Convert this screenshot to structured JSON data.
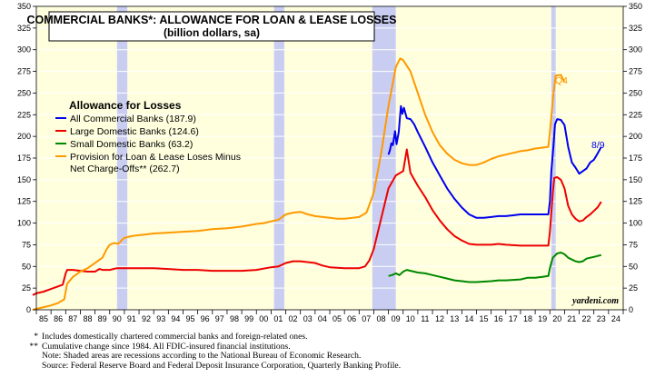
{
  "chart_data": {
    "type": "line",
    "title": "COMMERCIAL BANKS*: ALLOWANCE FOR LOAN & LEASE LOSSES",
    "subtitle": "(billion dollars, sa)",
    "ylim": [
      0,
      350
    ],
    "y_ticks": [
      "0",
      "25",
      "50",
      "75",
      "100",
      "125",
      "150",
      "175",
      "200",
      "225",
      "250",
      "275",
      "300",
      "325",
      "350"
    ],
    "xlim": [
      1985,
      2025
    ],
    "x_ticks": [
      "85",
      "86",
      "87",
      "88",
      "89",
      "90",
      "91",
      "92",
      "93",
      "94",
      "95",
      "96",
      "97",
      "98",
      "99",
      "00",
      "01",
      "02",
      "03",
      "04",
      "05",
      "06",
      "07",
      "08",
      "09",
      "10",
      "11",
      "12",
      "13",
      "14",
      "15",
      "16",
      "17",
      "18",
      "19",
      "20",
      "21",
      "22",
      "23",
      "24",
      "25"
    ],
    "recessions": [
      [
        1990.5,
        1991.2
      ],
      [
        2001.2,
        2001.9
      ],
      [
        2007.9,
        2009.5
      ],
      [
        2020.1,
        2020.4
      ]
    ],
    "legend_title": "Allowance for Losses",
    "series": [
      {
        "name": "All Commercial Banks (187.9)",
        "color": "#0000ee",
        "points": [
          [
            2009.0,
            179
          ],
          [
            2009.1,
            184
          ],
          [
            2009.2,
            192
          ],
          [
            2009.3,
            190
          ],
          [
            2009.45,
            206
          ],
          [
            2009.55,
            191
          ],
          [
            2009.7,
            205
          ],
          [
            2009.85,
            235
          ],
          [
            2009.95,
            226
          ],
          [
            2010.05,
            233
          ],
          [
            2010.25,
            221
          ],
          [
            2010.5,
            220
          ],
          [
            2010.75,
            214
          ],
          [
            2011,
            205
          ],
          [
            2011.5,
            188
          ],
          [
            2012,
            170
          ],
          [
            2012.5,
            155
          ],
          [
            2013,
            140
          ],
          [
            2013.5,
            128
          ],
          [
            2014,
            118
          ],
          [
            2014.5,
            110
          ],
          [
            2015,
            106
          ],
          [
            2015.5,
            106
          ],
          [
            2016,
            107
          ],
          [
            2016.5,
            108
          ],
          [
            2017,
            108
          ],
          [
            2017.5,
            109
          ],
          [
            2018,
            110
          ],
          [
            2018.5,
            110
          ],
          [
            2019,
            110
          ],
          [
            2019.5,
            110
          ],
          [
            2019.9,
            110
          ],
          [
            2020.0,
            125
          ],
          [
            2020.1,
            160
          ],
          [
            2020.25,
            190
          ],
          [
            2020.35,
            214
          ],
          [
            2020.5,
            220
          ],
          [
            2020.75,
            219
          ],
          [
            2021,
            213
          ],
          [
            2021.25,
            188
          ],
          [
            2021.5,
            170
          ],
          [
            2021.75,
            164
          ],
          [
            2022,
            157
          ],
          [
            2022.25,
            160
          ],
          [
            2022.5,
            163
          ],
          [
            2022.75,
            170
          ],
          [
            2023.0,
            173
          ],
          [
            2023.25,
            180
          ],
          [
            2023.5,
            187.9
          ]
        ],
        "end_label": "8/9"
      },
      {
        "name": "Large Domestic Banks (124.6)",
        "color": "#ee0000",
        "points": [
          [
            1984.75,
            17
          ],
          [
            1985,
            19
          ],
          [
            1985.5,
            21
          ],
          [
            1986,
            24
          ],
          [
            1986.5,
            27
          ],
          [
            1986.8,
            29
          ],
          [
            1987.0,
            42
          ],
          [
            1987.1,
            46
          ],
          [
            1987.5,
            46
          ],
          [
            1988,
            45
          ],
          [
            1988.5,
            44
          ],
          [
            1989,
            44
          ],
          [
            1989.3,
            47
          ],
          [
            1989.5,
            46
          ],
          [
            1990,
            46
          ],
          [
            1990.5,
            48
          ],
          [
            1991,
            48
          ],
          [
            1992,
            48
          ],
          [
            1993,
            48
          ],
          [
            1994,
            47
          ],
          [
            1995,
            46
          ],
          [
            1996,
            46
          ],
          [
            1997,
            45
          ],
          [
            1998,
            45
          ],
          [
            1999,
            45
          ],
          [
            2000,
            46
          ],
          [
            2001,
            49
          ],
          [
            2001.5,
            50
          ],
          [
            2002,
            54
          ],
          [
            2002.5,
            56
          ],
          [
            2003,
            56
          ],
          [
            2004,
            54
          ],
          [
            2004.5,
            51
          ],
          [
            2005,
            49
          ],
          [
            2006,
            48
          ],
          [
            2007,
            48
          ],
          [
            2007.4,
            50
          ],
          [
            2007.7,
            57
          ],
          [
            2008,
            70
          ],
          [
            2008.5,
            105
          ],
          [
            2009,
            140
          ],
          [
            2009.5,
            155
          ],
          [
            2010,
            160
          ],
          [
            2010.25,
            185
          ],
          [
            2010.5,
            158
          ],
          [
            2011,
            143
          ],
          [
            2011.5,
            130
          ],
          [
            2012,
            115
          ],
          [
            2012.5,
            103
          ],
          [
            2013,
            93
          ],
          [
            2013.5,
            85
          ],
          [
            2014,
            80
          ],
          [
            2014.5,
            76
          ],
          [
            2015,
            75
          ],
          [
            2016,
            75
          ],
          [
            2016.5,
            76
          ],
          [
            2017,
            75
          ],
          [
            2018,
            74
          ],
          [
            2019,
            74
          ],
          [
            2019.9,
            74
          ],
          [
            2020.0,
            90
          ],
          [
            2020.2,
            135
          ],
          [
            2020.3,
            152
          ],
          [
            2020.5,
            153
          ],
          [
            2020.75,
            150
          ],
          [
            2021,
            140
          ],
          [
            2021.25,
            120
          ],
          [
            2021.5,
            110
          ],
          [
            2021.75,
            105
          ],
          [
            2022,
            102
          ],
          [
            2022.25,
            103
          ],
          [
            2022.5,
            107
          ],
          [
            2022.75,
            110
          ],
          [
            2023,
            114
          ],
          [
            2023.25,
            118
          ],
          [
            2023.5,
            124.6
          ]
        ]
      },
      {
        "name": "Small Domestic Banks (63.2)",
        "color": "#008800",
        "points": [
          [
            2009.0,
            39
          ],
          [
            2009.25,
            40
          ],
          [
            2009.5,
            42
          ],
          [
            2009.75,
            40
          ],
          [
            2010,
            44
          ],
          [
            2010.25,
            46
          ],
          [
            2010.5,
            45
          ],
          [
            2011,
            43
          ],
          [
            2011.5,
            42
          ],
          [
            2012,
            40
          ],
          [
            2012.5,
            38
          ],
          [
            2013,
            36
          ],
          [
            2013.5,
            34
          ],
          [
            2014,
            33
          ],
          [
            2014.5,
            32
          ],
          [
            2015,
            32
          ],
          [
            2016,
            33
          ],
          [
            2016.5,
            34
          ],
          [
            2017,
            34
          ],
          [
            2018,
            35
          ],
          [
            2018.5,
            37
          ],
          [
            2019,
            37
          ],
          [
            2019.5,
            38
          ],
          [
            2019.9,
            39
          ],
          [
            2020.0,
            48
          ],
          [
            2020.2,
            60
          ],
          [
            2020.5,
            65
          ],
          [
            2020.75,
            66
          ],
          [
            2021,
            64
          ],
          [
            2021.25,
            60
          ],
          [
            2021.5,
            58
          ],
          [
            2021.75,
            56
          ],
          [
            2022,
            55
          ],
          [
            2022.25,
            56
          ],
          [
            2022.5,
            59
          ],
          [
            2022.75,
            60
          ],
          [
            2023,
            61
          ],
          [
            2023.25,
            62
          ],
          [
            2023.5,
            63.2
          ]
        ]
      },
      {
        "name": "Provision for Loan & Lease Loses Minus Net Charge-Offs** (262.7)",
        "color": "#ff9900",
        "points": [
          [
            1984.75,
            0
          ],
          [
            1985,
            1
          ],
          [
            1985.5,
            3
          ],
          [
            1986,
            5
          ],
          [
            1986.5,
            8
          ],
          [
            1986.9,
            12
          ],
          [
            1987.1,
            30
          ],
          [
            1987.5,
            38
          ],
          [
            1988,
            44
          ],
          [
            1988.5,
            48
          ],
          [
            1989,
            54
          ],
          [
            1989.5,
            60
          ],
          [
            1989.8,
            70
          ],
          [
            1990,
            75
          ],
          [
            1990.3,
            77
          ],
          [
            1990.6,
            76
          ],
          [
            1990.8,
            80
          ],
          [
            1991,
            83
          ],
          [
            1991.5,
            85
          ],
          [
            1992,
            86
          ],
          [
            1992.5,
            87
          ],
          [
            1993,
            88
          ],
          [
            1994,
            89
          ],
          [
            1995,
            90
          ],
          [
            1996,
            91
          ],
          [
            1997,
            93
          ],
          [
            1998,
            94
          ],
          [
            1999,
            96
          ],
          [
            2000,
            99
          ],
          [
            2000.5,
            100
          ],
          [
            2001,
            102
          ],
          [
            2001.5,
            104
          ],
          [
            2002,
            110
          ],
          [
            2002.5,
            112
          ],
          [
            2003,
            113
          ],
          [
            2003.5,
            110
          ],
          [
            2004,
            108
          ],
          [
            2005,
            106
          ],
          [
            2005.5,
            105
          ],
          [
            2006,
            105
          ],
          [
            2007,
            107
          ],
          [
            2007.5,
            112
          ],
          [
            2008,
            135
          ],
          [
            2008.5,
            180
          ],
          [
            2009,
            235
          ],
          [
            2009.5,
            280
          ],
          [
            2009.8,
            290
          ],
          [
            2010,
            288
          ],
          [
            2010.5,
            275
          ],
          [
            2011,
            250
          ],
          [
            2011.5,
            225
          ],
          [
            2012,
            205
          ],
          [
            2012.5,
            190
          ],
          [
            2013,
            180
          ],
          [
            2013.5,
            173
          ],
          [
            2014,
            169
          ],
          [
            2014.5,
            167
          ],
          [
            2015,
            167
          ],
          [
            2015.5,
            170
          ],
          [
            2016,
            174
          ],
          [
            2016.5,
            177
          ],
          [
            2017,
            179
          ],
          [
            2017.5,
            181
          ],
          [
            2018,
            183
          ],
          [
            2018.5,
            184
          ],
          [
            2019,
            186
          ],
          [
            2019.5,
            187
          ],
          [
            2019.9,
            188
          ],
          [
            2020.0,
            205
          ],
          [
            2020.25,
            250
          ],
          [
            2020.4,
            270
          ],
          [
            2020.75,
            271
          ],
          [
            2021.0,
            262.7
          ]
        ],
        "end_label": "Q4"
      }
    ],
    "watermark": "yardeni.com",
    "footnotes": [
      {
        "mark": "*",
        "text": "Includes domestically chartered commercial banks and foreign-related ones."
      },
      {
        "mark": "**",
        "text": "Cumulative change since 1984. All FDIC-insured financial institutions."
      },
      {
        "mark": "",
        "text": "Note: Shaded areas are recessions according to the National Bureau of Economic Research."
      },
      {
        "mark": "",
        "text": "Source: Federal Reserve Board and Federal Deposit Insurance Corporation, Quarterly Banking Profile."
      }
    ]
  },
  "colors": {
    "plot_bg": "#ffffde",
    "recession": "#c9cdf2",
    "legend_title": "#000000"
  }
}
